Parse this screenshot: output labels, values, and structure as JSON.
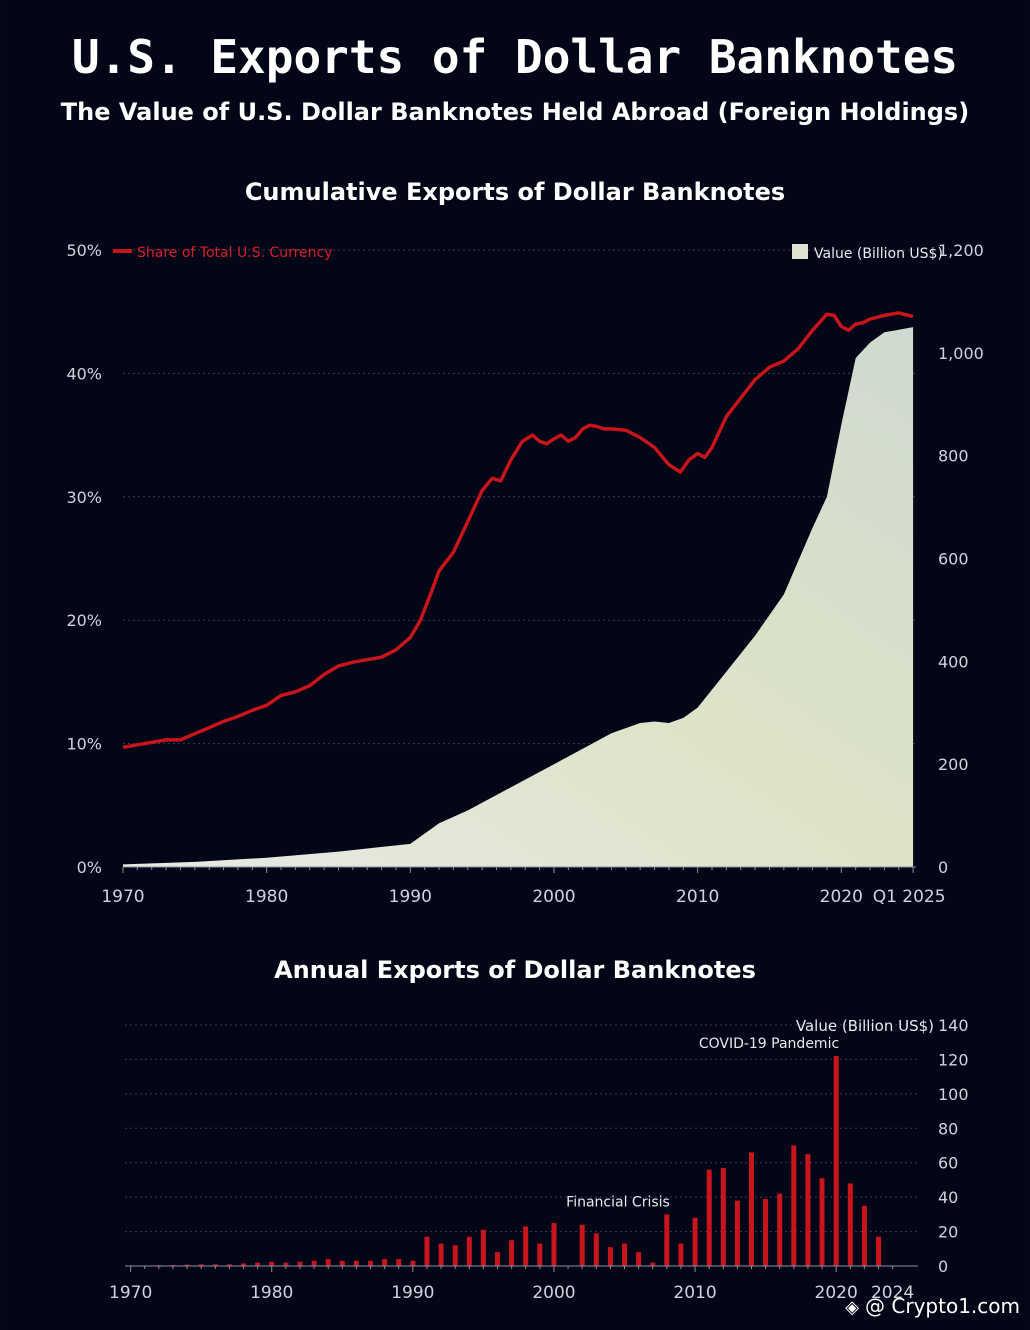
{
  "title": "U.S. Exports of Dollar Banknotes",
  "subtitle": "The Value of U.S. Dollar Banknotes Held Abroad (Foreign Holdings)",
  "watermark": "@ Crypto1.com",
  "colors": {
    "background": "#030616",
    "line": "#c8141b",
    "bars": "#c8141b",
    "area": "#dfe3d0"
  },
  "chart_data": [
    {
      "type": "line+area",
      "title": "Cumulative Exports of Dollar Banknotes",
      "legend_line": "Share of Total U.S. Currency",
      "legend_area": "Value (Billion US$)",
      "legend_placement": "top",
      "x_ticks": [
        "1970",
        "1980",
        "1990",
        "2000",
        "2010",
        "2020",
        "Q1 2025"
      ],
      "x_tick_values": [
        1970,
        1980,
        1990,
        2000,
        2010,
        2020,
        2025
      ],
      "xlim": [
        1970,
        2025.2
      ],
      "y_left_ticks": [
        "0%",
        "10%",
        "20%",
        "30%",
        "40%",
        "50%"
      ],
      "y_left_lim": [
        0,
        50
      ],
      "y_right_ticks": [
        "0",
        "200",
        "400",
        "600",
        "800",
        "1,000",
        "1,200"
      ],
      "y_right_lim": [
        0,
        1200
      ],
      "grid": true,
      "share_series": {
        "name": "Share of Total U.S. Currency",
        "x": [
          1970,
          1971,
          1972,
          1973,
          1974,
          1975,
          1976,
          1977,
          1978,
          1979,
          1980,
          1981,
          1982,
          1983,
          1984,
          1985,
          1986,
          1987,
          1988,
          1989,
          1990,
          1990.7,
          1991.5,
          1992,
          1993,
          1994,
          1995,
          1995.7,
          1996.3,
          1997,
          1997.8,
          1998.5,
          1999,
          1999.5,
          2000,
          2000.5,
          2001,
          2001.5,
          2002,
          2002.5,
          2003,
          2003.5,
          2004,
          2005,
          2006,
          2007,
          2008,
          2008.8,
          2009.4,
          2010,
          2010.5,
          2011,
          2012,
          2013,
          2014,
          2015,
          2016,
          2017,
          2018,
          2019,
          2019.5,
          2020,
          2020.5,
          2021,
          2021.5,
          2022,
          2023,
          2024,
          2025
        ],
        "values": [
          9.7,
          9.9,
          10.1,
          10.3,
          10.3,
          10.8,
          11.3,
          11.8,
          12.2,
          12.7,
          13.1,
          13.9,
          14.2,
          14.7,
          15.6,
          16.3,
          16.6,
          16.8,
          17.0,
          17.6,
          18.6,
          20.0,
          22.4,
          24.0,
          25.5,
          28.0,
          30.5,
          31.5,
          31.3,
          33.0,
          34.5,
          35.0,
          34.5,
          34.3,
          34.7,
          35.0,
          34.5,
          34.8,
          35.5,
          35.8,
          35.7,
          35.5,
          35.5,
          35.4,
          34.8,
          34.0,
          32.6,
          32.0,
          33.0,
          33.5,
          33.2,
          34.0,
          36.5,
          38.0,
          39.5,
          40.5,
          41.0,
          42.0,
          43.5,
          44.8,
          44.7,
          43.8,
          43.5,
          44.0,
          44.1,
          44.4,
          44.7,
          44.9,
          44.6
        ]
      },
      "value_series": {
        "name": "Value (Billion US$)",
        "x": [
          1970,
          1975,
          1980,
          1985,
          1990,
          1992,
          1994,
          1996,
          1998,
          2000,
          2002,
          2004,
          2006,
          2007,
          2008,
          2009,
          2010,
          2012,
          2014,
          2016,
          2018,
          2019,
          2020,
          2021,
          2022,
          2023,
          2024,
          2025
        ],
        "values": [
          5,
          10,
          18,
          30,
          45,
          85,
          110,
          140,
          170,
          200,
          230,
          260,
          280,
          283,
          280,
          290,
          310,
          380,
          450,
          530,
          660,
          720,
          860,
          990,
          1020,
          1040,
          1045,
          1050
        ]
      }
    },
    {
      "type": "bar",
      "title": "Annual Exports of Dollar Banknotes",
      "ylabel": "Value (Billion US$)",
      "x_ticks": [
        "1970",
        "1980",
        "1990",
        "2000",
        "2010",
        "2020",
        "2024"
      ],
      "x_tick_values": [
        1970,
        1980,
        1990,
        2000,
        2010,
        2020,
        2024
      ],
      "xlim": [
        1969.6,
        2025.8
      ],
      "ylim": [
        0,
        140
      ],
      "y_ticks": [
        "0",
        "20",
        "40",
        "60",
        "80",
        "100",
        "120",
        "140"
      ],
      "grid": true,
      "annotations": [
        {
          "text": "Financial Crisis",
          "x": 2008
        },
        {
          "text": "COVID-19 Pandemic",
          "x": 2020
        }
      ],
      "categories": [
        1970,
        1971,
        1972,
        1973,
        1974,
        1975,
        1976,
        1977,
        1978,
        1979,
        1980,
        1981,
        1982,
        1983,
        1984,
        1985,
        1986,
        1987,
        1988,
        1989,
        1990,
        1991,
        1992,
        1993,
        1994,
        1995,
        1996,
        1997,
        1998,
        1999,
        2000,
        2001,
        2002,
        2003,
        2004,
        2005,
        2006,
        2007,
        2008,
        2009,
        2010,
        2011,
        2012,
        2013,
        2014,
        2015,
        2016,
        2017,
        2018,
        2019,
        2020,
        2021,
        2022,
        2023,
        2024
      ],
      "values": [
        0.3,
        0.3,
        0.5,
        0.5,
        0.8,
        1,
        1,
        1,
        1.5,
        2,
        2.5,
        2,
        2.5,
        3,
        4,
        3,
        3,
        3,
        4,
        4,
        3,
        17,
        13,
        12,
        17,
        21,
        8,
        15,
        23,
        13,
        25,
        0,
        24,
        19,
        11,
        13,
        8,
        2,
        30,
        13,
        28,
        56,
        57,
        38,
        66,
        39,
        42,
        70,
        65,
        51,
        122,
        48,
        35,
        17,
        0
      ]
    }
  ]
}
